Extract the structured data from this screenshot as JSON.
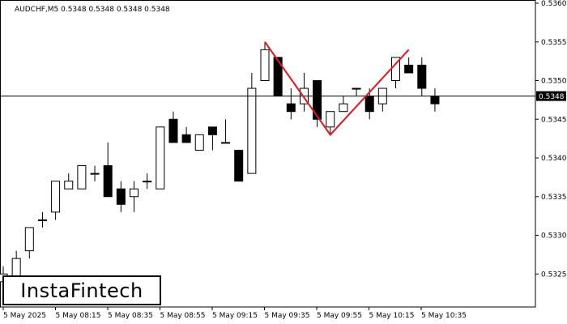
{
  "chart_data": {
    "type": "candlestick",
    "title": "AUDCHF,M5  0.5348 0.5348 0.5348 0.5348",
    "symbol": "AUDCHF,M5",
    "current_price_label": "0.5348",
    "ylim": [
      0.532,
      0.536
    ],
    "y_ticks": [
      "0.5360",
      "0.5355",
      "0.5350",
      "0.5345",
      "0.5340",
      "0.5335",
      "0.5330",
      "0.5325"
    ],
    "x_tick_labels": [
      "5 May 2025",
      "5 May 08:15",
      "5 May 08:35",
      "5 May 08:55",
      "5 May 09:15",
      "5 May 09:35",
      "5 May 09:55",
      "5 May 10:15",
      "5 May 10:35"
    ],
    "candles": [
      {
        "o": 0.5324,
        "h": 0.5326,
        "l": 0.5322,
        "c": 0.5325
      },
      {
        "o": 0.5324,
        "h": 0.5328,
        "l": 0.5322,
        "c": 0.5327
      },
      {
        "o": 0.5328,
        "h": 0.5331,
        "l": 0.5327,
        "c": 0.5331
      },
      {
        "o": 0.5332,
        "h": 0.5333,
        "l": 0.5331,
        "c": 0.5332
      },
      {
        "o": 0.5333,
        "h": 0.5337,
        "l": 0.5332,
        "c": 0.5337
      },
      {
        "o": 0.5336,
        "h": 0.5338,
        "l": 0.5336,
        "c": 0.5337
      },
      {
        "o": 0.5336,
        "h": 0.5339,
        "l": 0.5336,
        "c": 0.5339
      },
      {
        "o": 0.5338,
        "h": 0.5339,
        "l": 0.5337,
        "c": 0.5338
      },
      {
        "o": 0.5339,
        "h": 0.5342,
        "l": 0.5335,
        "c": 0.5335
      },
      {
        "o": 0.5336,
        "h": 0.5337,
        "l": 0.5333,
        "c": 0.5334
      },
      {
        "o": 0.5335,
        "h": 0.5337,
        "l": 0.5333,
        "c": 0.5336
      },
      {
        "o": 0.5337,
        "h": 0.5338,
        "l": 0.5336,
        "c": 0.5337
      },
      {
        "o": 0.5336,
        "h": 0.5344,
        "l": 0.5336,
        "c": 0.5344
      },
      {
        "o": 0.5345,
        "h": 0.5346,
        "l": 0.5342,
        "c": 0.5342
      },
      {
        "o": 0.5343,
        "h": 0.5344,
        "l": 0.5342,
        "c": 0.5342
      },
      {
        "o": 0.5341,
        "h": 0.5343,
        "l": 0.5341,
        "c": 0.5343
      },
      {
        "o": 0.5344,
        "h": 0.5344,
        "l": 0.5341,
        "c": 0.5343
      },
      {
        "o": 0.5342,
        "h": 0.5345,
        "l": 0.5342,
        "c": 0.5342
      },
      {
        "o": 0.5341,
        "h": 0.5341,
        "l": 0.5337,
        "c": 0.5337
      },
      {
        "o": 0.5338,
        "h": 0.5351,
        "l": 0.5338,
        "c": 0.5349
      },
      {
        "o": 0.535,
        "h": 0.5355,
        "l": 0.535,
        "c": 0.5354
      },
      {
        "o": 0.5353,
        "h": 0.5353,
        "l": 0.5348,
        "c": 0.5348
      },
      {
        "o": 0.5347,
        "h": 0.5349,
        "l": 0.5345,
        "c": 0.5346
      },
      {
        "o": 0.5347,
        "h": 0.5351,
        "l": 0.5346,
        "c": 0.5349
      },
      {
        "o": 0.535,
        "h": 0.535,
        "l": 0.5344,
        "c": 0.5345
      },
      {
        "o": 0.5344,
        "h": 0.5346,
        "l": 0.5343,
        "c": 0.5346
      },
      {
        "o": 0.5346,
        "h": 0.5348,
        "l": 0.5346,
        "c": 0.5347
      },
      {
        "o": 0.5349,
        "h": 0.5349,
        "l": 0.5348,
        "c": 0.5349
      },
      {
        "o": 0.5348,
        "h": 0.5349,
        "l": 0.5345,
        "c": 0.5346
      },
      {
        "o": 0.5347,
        "h": 0.5349,
        "l": 0.5346,
        "c": 0.5349
      },
      {
        "o": 0.535,
        "h": 0.5353,
        "l": 0.5349,
        "c": 0.5353
      },
      {
        "o": 0.5352,
        "h": 0.5353,
        "l": 0.5351,
        "c": 0.5351
      },
      {
        "o": 0.5352,
        "h": 0.5353,
        "l": 0.5348,
        "c": 0.5349
      },
      {
        "o": 0.5348,
        "h": 0.5349,
        "l": 0.5346,
        "c": 0.5347
      }
    ],
    "pattern_line": [
      {
        "candle": 20,
        "price": 0.5355
      },
      {
        "candle": 25,
        "price": 0.5343
      },
      {
        "candle": 31,
        "price": 0.5354
      }
    ],
    "current_price": 0.5348,
    "grid": false,
    "colors": {
      "bull_fill": "#ffffff",
      "bear_fill": "#000000",
      "candle_outline": "#000000",
      "pattern": "#e8141e",
      "axis": "#000000"
    }
  },
  "brand": {
    "name": "InstaFintech"
  }
}
